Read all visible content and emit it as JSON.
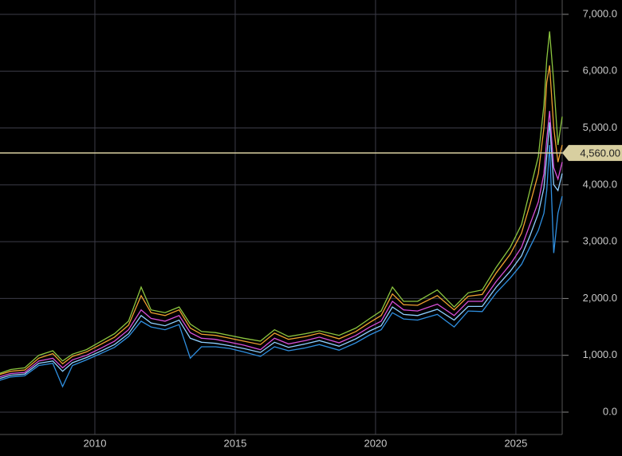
{
  "chart_data": {
    "type": "line",
    "x": [
      2006.6,
      2007.0,
      2007.5,
      2008.0,
      2008.5,
      2008.85,
      2009.2,
      2009.7,
      2010.2,
      2010.7,
      2011.2,
      2011.65,
      2012.0,
      2012.5,
      2013.0,
      2013.4,
      2013.8,
      2014.3,
      2014.8,
      2015.3,
      2015.9,
      2016.4,
      2016.9,
      2017.5,
      2018.0,
      2018.7,
      2019.3,
      2019.8,
      2020.2,
      2020.6,
      2021.0,
      2021.5,
      2022.2,
      2022.8,
      2023.3,
      2023.8,
      2024.3,
      2024.8,
      2025.2,
      2025.5,
      2025.8,
      2026.0,
      2026.1,
      2026.2,
      2026.35,
      2026.5,
      2026.65
    ],
    "series": [
      {
        "color": "#8cc63f",
        "values": [
          680,
          750,
          780,
          1000,
          1080,
          900,
          1020,
          1100,
          1240,
          1380,
          1600,
          2200,
          1800,
          1750,
          1850,
          1550,
          1420,
          1400,
          1350,
          1300,
          1250,
          1450,
          1330,
          1380,
          1430,
          1350,
          1480,
          1650,
          1780,
          2200,
          1950,
          1950,
          2150,
          1850,
          2100,
          2150,
          2550,
          2900,
          3300,
          3900,
          4500,
          5400,
          6200,
          6700,
          5800,
          4700,
          5200
        ]
      },
      {
        "color": "#f0a030",
        "values": [
          660,
          720,
          740,
          950,
          1030,
          850,
          980,
          1060,
          1190,
          1320,
          1530,
          2050,
          1750,
          1700,
          1800,
          1480,
          1370,
          1350,
          1300,
          1250,
          1190,
          1390,
          1280,
          1330,
          1390,
          1290,
          1420,
          1580,
          1700,
          2080,
          1890,
          1880,
          2050,
          1800,
          2040,
          2070,
          2450,
          2780,
          3150,
          3650,
          4200,
          5000,
          5800,
          6100,
          5000,
          4400,
          4700
        ]
      },
      {
        "color": "#d84fd8",
        "values": [
          620,
          680,
          700,
          900,
          950,
          780,
          920,
          1000,
          1120,
          1250,
          1450,
          1800,
          1650,
          1600,
          1700,
          1400,
          1300,
          1280,
          1230,
          1180,
          1100,
          1300,
          1200,
          1260,
          1320,
          1220,
          1350,
          1500,
          1600,
          1950,
          1800,
          1780,
          1900,
          1700,
          1950,
          1950,
          2300,
          2600,
          2900,
          3300,
          3700,
          4200,
          4800,
          5300,
          4300,
          4100,
          4400
        ]
      },
      {
        "color": "#8ecfff",
        "values": [
          590,
          650,
          670,
          860,
          900,
          720,
          870,
          960,
          1070,
          1190,
          1380,
          1700,
          1570,
          1520,
          1620,
          1300,
          1230,
          1210,
          1170,
          1120,
          1050,
          1230,
          1140,
          1200,
          1260,
          1160,
          1290,
          1430,
          1520,
          1850,
          1720,
          1700,
          1810,
          1620,
          1860,
          1860,
          2200,
          2480,
          2750,
          3100,
          3500,
          3950,
          4500,
          5100,
          4000,
          3900,
          4200
        ]
      },
      {
        "color": "#2f8fe0",
        "values": [
          560,
          620,
          640,
          820,
          860,
          450,
          820,
          920,
          1030,
          1140,
          1330,
          1600,
          1500,
          1450,
          1540,
          950,
          1150,
          1150,
          1120,
          1060,
          980,
          1150,
          1080,
          1130,
          1190,
          1090,
          1220,
          1360,
          1450,
          1750,
          1640,
          1620,
          1720,
          1500,
          1780,
          1770,
          2100,
          2360,
          2600,
          2900,
          3200,
          3500,
          3900,
          4700,
          2800,
          3500,
          3800
        ]
      }
    ],
    "xlim": [
      2006.62,
      2026.65
    ],
    "xticks": [
      2010,
      2015,
      2020,
      2025
    ],
    "ylim": [
      -393,
      7252
    ],
    "yticks": [
      {
        "value": 0,
        "label": "0.0"
      },
      {
        "value": 1000,
        "label": "1,000.0"
      },
      {
        "value": 2000,
        "label": "2,000.0"
      },
      {
        "value": 3000,
        "label": "3,000.0"
      },
      {
        "value": 4000,
        "label": "4,000.0"
      },
      {
        "value": 5000,
        "label": "5,000.0"
      },
      {
        "value": 6000,
        "label": "6,000.0"
      },
      {
        "value": 7000,
        "label": "7,000.0"
      }
    ],
    "grid": true,
    "last_price": {
      "value": 4560,
      "label": "4,560.00",
      "color": "#d8cfa0"
    }
  }
}
